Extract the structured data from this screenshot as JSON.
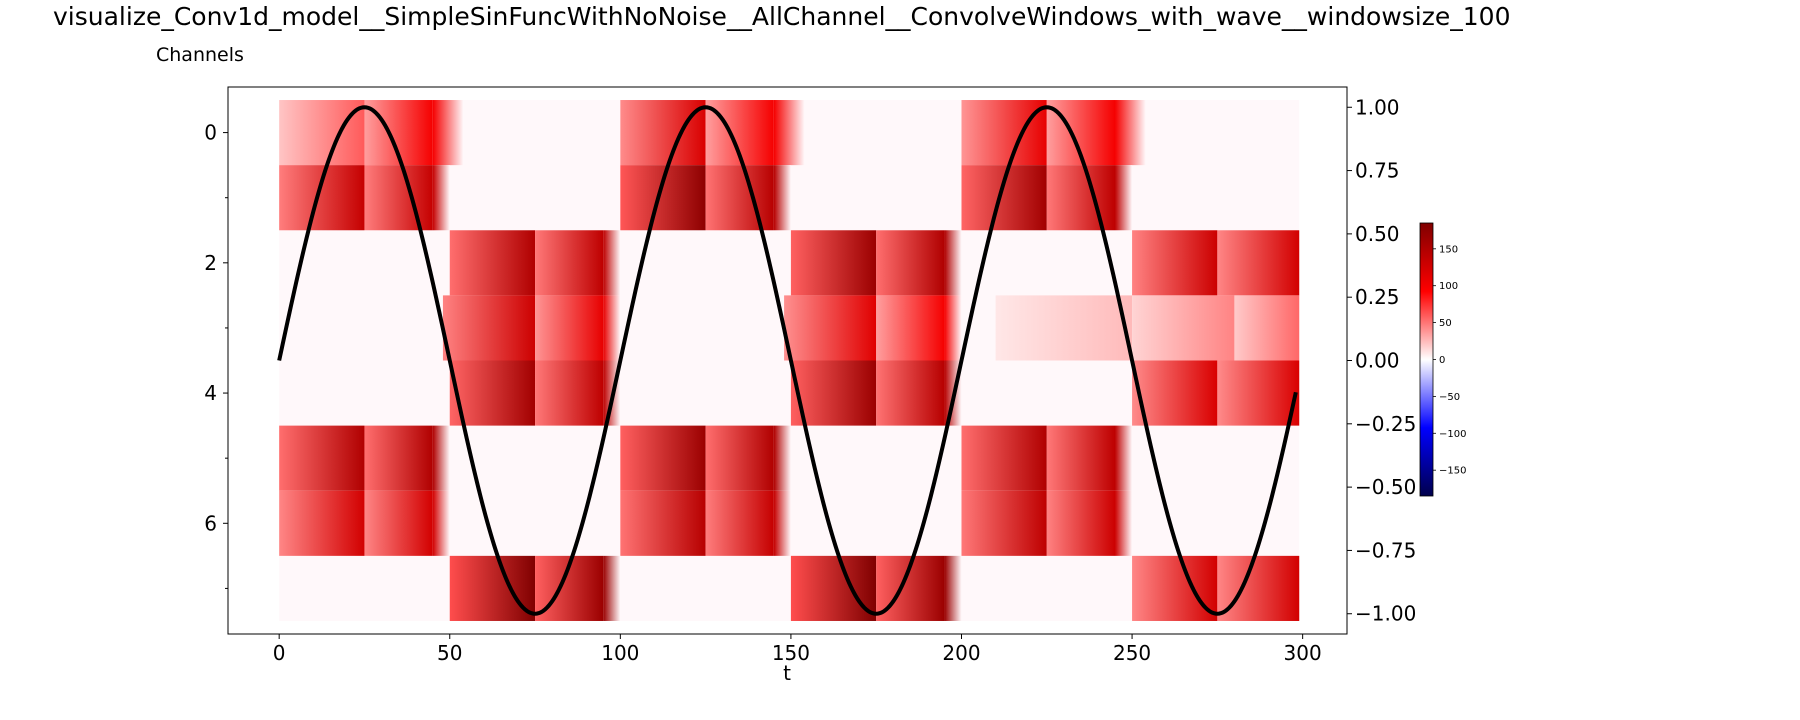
{
  "figure": {
    "title": "visualize_Conv1d_model__SimpleSinFuncWithNoNoise__AllChannel__ConvolveWindows_with_wave__windowsize_100",
    "subtitle": "Channels"
  },
  "chart_data": {
    "type": "heatmap",
    "title": "visualize_Conv1d_model__SimpleSinFuncWithNoNoise__AllChannel__ConvolveWindows_with_wave__windowsize_100",
    "ylabel": "Channels",
    "xlabel": "t",
    "xlim": [
      -15,
      313
    ],
    "ylim": [
      7.7,
      -0.7
    ],
    "x_ticks": [
      0,
      50,
      100,
      150,
      200,
      250,
      300
    ],
    "x_tick_labels": [
      "0",
      "50",
      "100",
      "150",
      "200",
      "250",
      "300"
    ],
    "y_ticks": [
      0,
      2,
      4,
      6
    ],
    "y_tick_labels": [
      "0",
      "2",
      "4",
      "6"
    ],
    "y_minor_ticks": [
      1,
      3,
      5,
      7
    ],
    "right_axis": {
      "ylim": [
        -1.08,
        1.08
      ],
      "ticks": [
        1.0,
        0.75,
        0.5,
        0.25,
        0.0,
        -0.25,
        -0.5,
        -0.75,
        -1.0
      ],
      "tick_labels": [
        "1.00",
        "0.75",
        "0.50",
        "0.25",
        "0.00",
        "−0.25",
        "−0.50",
        "−0.75",
        "−1.00"
      ]
    },
    "colorbar": {
      "range": [
        -185,
        185
      ],
      "ticks": [
        150,
        100,
        50,
        0,
        -50,
        -100,
        -150
      ],
      "tick_labels": [
        "150",
        "100",
        "50",
        "0",
        "−50",
        "−100",
        "−150"
      ],
      "colormap": "seismic"
    },
    "heatmap": {
      "x_range": [
        0,
        299
      ],
      "channels": [
        {
          "channel": 0,
          "segments": [
            [
              0,
              25,
              60
            ],
            [
              25,
              45,
              100
            ],
            [
              45,
              54,
              0
            ],
            [
              100,
              125,
              120
            ],
            [
              125,
              145,
              100
            ],
            [
              145,
              154,
              0
            ],
            [
              200,
              225,
              110
            ],
            [
              225,
              245,
              100
            ],
            [
              245,
              254,
              0
            ]
          ]
        },
        {
          "channel": 1,
          "segments": [
            [
              0,
              25,
              135
            ],
            [
              25,
              45,
              135
            ],
            [
              45,
              50,
              0
            ],
            [
              100,
              125,
              175
            ],
            [
              125,
              145,
              145
            ],
            [
              145,
              150,
              0
            ],
            [
              200,
              225,
              160
            ],
            [
              225,
              245,
              140
            ],
            [
              245,
              250,
              0
            ]
          ]
        },
        {
          "channel": 2,
          "segments": [
            [
              50,
              75,
              150
            ],
            [
              75,
              95,
              140
            ],
            [
              95,
              100,
              0
            ],
            [
              150,
              175,
              165
            ],
            [
              175,
              195,
              150
            ],
            [
              195,
              200,
              0
            ],
            [
              250,
              275,
              130
            ],
            [
              275,
              299,
              125
            ]
          ]
        },
        {
          "channel": 3,
          "segments": [
            [
              48,
              75,
              130
            ],
            [
              75,
              95,
              110
            ],
            [
              95,
              100,
              0
            ],
            [
              148,
              175,
              115
            ],
            [
              175,
              195,
              100
            ],
            [
              195,
              200,
              0
            ],
            [
              210,
              250,
              25
            ],
            [
              250,
              280,
              45
            ],
            [
              280,
              299,
              55
            ]
          ]
        },
        {
          "channel": 4,
          "segments": [
            [
              50,
              75,
              160
            ],
            [
              75,
              95,
              140
            ],
            [
              95,
              100,
              0
            ],
            [
              150,
              175,
              165
            ],
            [
              175,
              195,
              145
            ],
            [
              195,
              200,
              0
            ],
            [
              250,
              275,
              120
            ],
            [
              275,
              299,
              120
            ]
          ]
        },
        {
          "channel": 5,
          "segments": [
            [
              0,
              25,
              150
            ],
            [
              25,
              45,
              150
            ],
            [
              45,
              50,
              0
            ],
            [
              100,
              125,
              165
            ],
            [
              125,
              145,
              150
            ],
            [
              145,
              150,
              0
            ],
            [
              200,
              225,
              150
            ],
            [
              225,
              245,
              140
            ],
            [
              245,
              250,
              0
            ]
          ]
        },
        {
          "channel": 6,
          "segments": [
            [
              0,
              25,
              125
            ],
            [
              25,
              45,
              125
            ],
            [
              45,
              50,
              0
            ],
            [
              100,
              125,
              145
            ],
            [
              125,
              145,
              135
            ],
            [
              145,
              150,
              0
            ],
            [
              200,
              225,
              140
            ],
            [
              225,
              245,
              130
            ],
            [
              245,
              250,
              0
            ]
          ]
        },
        {
          "channel": 7,
          "segments": [
            [
              50,
              75,
              185
            ],
            [
              75,
              95,
              165
            ],
            [
              95,
              100,
              0
            ],
            [
              150,
              175,
              185
            ],
            [
              175,
              195,
              165
            ],
            [
              195,
              200,
              0
            ],
            [
              250,
              275,
              125
            ],
            [
              275,
              299,
              125
            ]
          ]
        }
      ]
    },
    "series": [
      {
        "type": "line",
        "axis": "right",
        "color": "#000000",
        "function": "sin(2*pi*t/100)",
        "t_range": [
          0,
          298
        ]
      }
    ]
  }
}
